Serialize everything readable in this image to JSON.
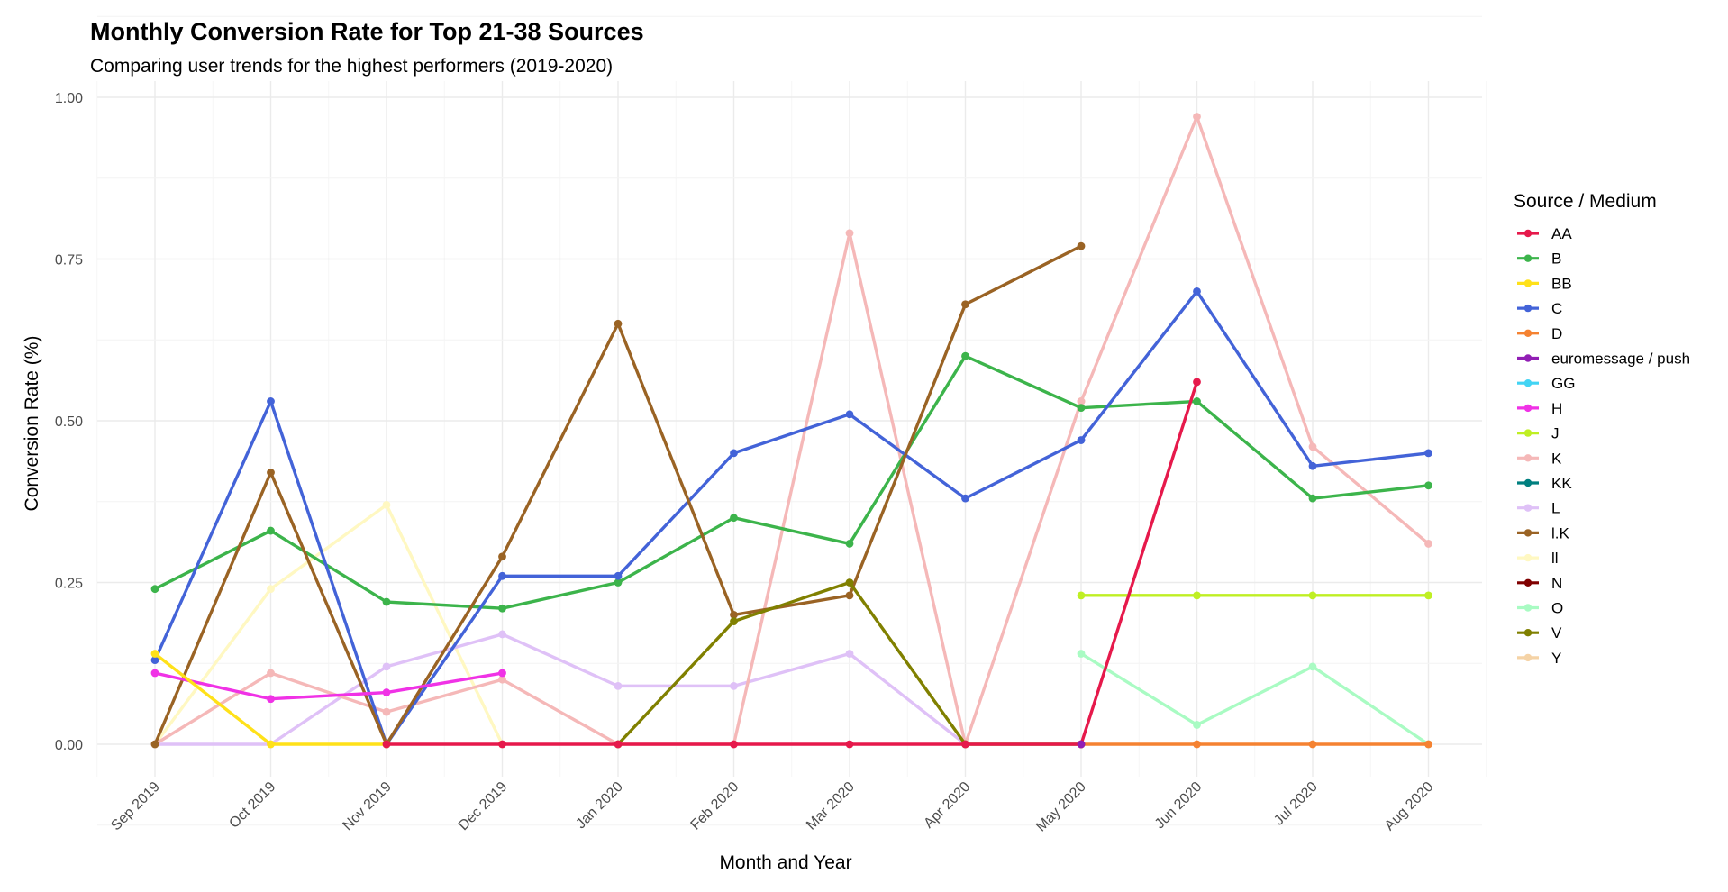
{
  "chart_data": {
    "type": "line",
    "title": "Monthly Conversion Rate for Top 21-38 Sources",
    "subtitle": "Comparing user trends for the highest performers (2019-2020)",
    "xlabel": "Month and Year",
    "ylabel": "Conversion Rate (%)",
    "ylim": [
      0,
      1
    ],
    "yticks": [
      "0.00",
      "0.25",
      "0.50",
      "0.75",
      "1.00"
    ],
    "categories": [
      "Sep 2019",
      "Oct 2019",
      "Nov 2019",
      "Dec 2019",
      "Jan 2020",
      "Feb 2020",
      "Mar 2020",
      "Apr 2020",
      "May 2020",
      "Jun 2020",
      "Jul 2020",
      "Aug 2020"
    ],
    "legend_title": "Source / Medium",
    "legend_position": "right",
    "grid": true,
    "series": [
      {
        "name": "Y",
        "color": "#f5d3a6",
        "values": [
          null,
          null,
          null,
          null,
          null,
          null,
          null,
          null,
          0.53,
          null,
          null,
          null
        ]
      },
      {
        "name": "ll",
        "color": "#fff8c2",
        "values": [
          0.0,
          0.24,
          0.37,
          0.0,
          null,
          null,
          null,
          null,
          null,
          null,
          null,
          null
        ]
      },
      {
        "name": "L",
        "color": "#dfc1f7",
        "values": [
          0.0,
          0.0,
          0.12,
          0.17,
          0.09,
          0.09,
          0.14,
          0.0,
          null,
          null,
          null,
          null
        ]
      },
      {
        "name": "O",
        "color": "#a9fbc3",
        "values": [
          null,
          null,
          null,
          null,
          null,
          null,
          null,
          null,
          0.14,
          0.03,
          0.12,
          0.0
        ]
      },
      {
        "name": "K",
        "color": "#f5b8b8",
        "values": [
          0.0,
          0.11,
          0.05,
          0.1,
          0.0,
          0.0,
          0.79,
          0.0,
          0.53,
          0.97,
          0.46,
          0.31
        ]
      },
      {
        "name": "B",
        "color": "#3cb44b",
        "values": [
          0.24,
          0.33,
          0.22,
          0.21,
          0.25,
          0.35,
          0.31,
          0.6,
          0.52,
          0.53,
          0.38,
          0.4
        ]
      },
      {
        "name": "C",
        "color": "#4363d8",
        "values": [
          0.13,
          0.53,
          0.0,
          0.26,
          0.26,
          0.45,
          0.51,
          0.38,
          0.47,
          0.7,
          0.43,
          0.45
        ]
      },
      {
        "name": "l.K",
        "color": "#9a6324",
        "values": [
          0.0,
          0.42,
          0.0,
          0.29,
          0.65,
          0.2,
          0.23,
          0.68,
          0.77,
          null,
          null,
          null
        ]
      },
      {
        "name": "V",
        "color": "#808000",
        "values": [
          null,
          null,
          null,
          null,
          0.0,
          0.19,
          0.25,
          0.0,
          0.0,
          null,
          null,
          null
        ]
      },
      {
        "name": "H",
        "color": "#f032e6",
        "values": [
          0.11,
          0.07,
          0.08,
          0.11,
          null,
          null,
          null,
          null,
          null,
          null,
          null,
          null
        ]
      },
      {
        "name": "BB",
        "color": "#ffe119",
        "values": [
          0.14,
          0.0,
          0.0,
          null,
          null,
          null,
          null,
          null,
          null,
          null,
          null,
          null
        ]
      },
      {
        "name": "J",
        "color": "#bfef23",
        "values": [
          null,
          null,
          null,
          null,
          null,
          null,
          null,
          null,
          0.23,
          0.23,
          0.23,
          0.23
        ]
      },
      {
        "name": "D",
        "color": "#f58231",
        "values": [
          null,
          null,
          null,
          null,
          null,
          null,
          null,
          null,
          0.0,
          0.0,
          0.0,
          0.0
        ]
      },
      {
        "name": "AA",
        "color": "#e6194b",
        "values": [
          null,
          null,
          0.0,
          0.0,
          0.0,
          0.0,
          0.0,
          0.0,
          0.0,
          0.56,
          null,
          null
        ]
      },
      {
        "name": "euromessage / push",
        "color": "#911eb4",
        "values": [
          null,
          null,
          null,
          null,
          null,
          null,
          null,
          null,
          0.0,
          null,
          null,
          null
        ]
      },
      {
        "name": "GG",
        "color": "#42d4f4",
        "values": [
          null,
          null,
          null,
          null,
          null,
          null,
          null,
          null,
          null,
          null,
          null,
          null
        ]
      },
      {
        "name": "KK",
        "color": "#008080",
        "values": [
          null,
          null,
          null,
          null,
          null,
          null,
          null,
          null,
          null,
          null,
          null,
          null
        ]
      },
      {
        "name": "N",
        "color": "#800000",
        "values": [
          null,
          null,
          null,
          null,
          null,
          null,
          null,
          null,
          null,
          null,
          null,
          null
        ]
      }
    ],
    "legend_order": [
      "AA",
      "B",
      "BB",
      "C",
      "D",
      "euromessage / push",
      "GG",
      "H",
      "J",
      "K",
      "KK",
      "L",
      "l.K",
      "ll",
      "N",
      "O",
      "V",
      "Y"
    ]
  }
}
